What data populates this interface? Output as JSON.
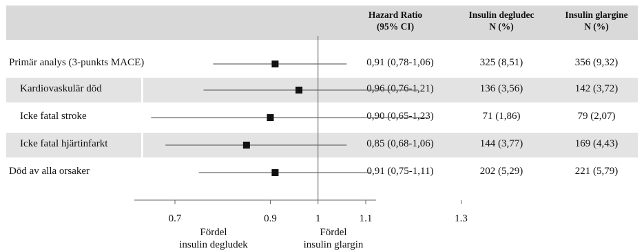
{
  "headers": {
    "hr": [
      "Hazard Ratio",
      "(95% CI)"
    ],
    "deg": [
      "Insulin degludec",
      "N (%)"
    ],
    "gla": [
      "Insulin glargine",
      "N (%)"
    ]
  },
  "favour_left": [
    "Fördel",
    "insulin degludek"
  ],
  "favour_right": [
    "Fördel",
    "insulin glargin"
  ],
  "chart_data": {
    "type": "forest",
    "reference_line": 1,
    "xlim": [
      0.5,
      1.58
    ],
    "ticks": [
      {
        "value": 0.7,
        "label": "0.7"
      },
      {
        "value": 0.9,
        "label": "0.9"
      },
      {
        "value": 1.0,
        "label": "1"
      },
      {
        "value": 1.1,
        "label": "1.1"
      },
      {
        "value": 1.3,
        "label": "1.3"
      }
    ],
    "rows": [
      {
        "label": "Primär analys (3-punkts MACE)",
        "hr": 0.91,
        "lo": 0.78,
        "hi": 1.06,
        "hr_text": "0,91 (0,78-1,06)",
        "deg": "325 (8,51)",
        "gla": "356 (9,32)",
        "shaded": false,
        "indent": false
      },
      {
        "label": "Kardiovaskulär död",
        "hr": 0.96,
        "lo": 0.76,
        "hi": 1.21,
        "hr_text": "0,96 (0,76-1,21)",
        "deg": "136 (3,56)",
        "gla": "142 (3,72)",
        "shaded": true,
        "indent": true
      },
      {
        "label": "Icke fatal stroke",
        "hr": 0.9,
        "lo": 0.65,
        "hi": 1.23,
        "hr_text": "0,90 (0,65-1,23)",
        "deg": "71 (1,86)",
        "gla": "79 (2,07)",
        "shaded": false,
        "indent": true
      },
      {
        "label": "Icke fatal hjärtinfarkt",
        "hr": 0.85,
        "lo": 0.68,
        "hi": 1.06,
        "hr_text": "0,85 (0,68-1,06)",
        "deg": "144 (3,77)",
        "gla": "169 (4,43)",
        "shaded": true,
        "indent": true
      },
      {
        "label": "Död av alla orsaker",
        "hr": 0.91,
        "lo": 0.75,
        "hi": 1.11,
        "hr_text": "0,91 (0,75-1,11)",
        "deg": "202 (5,29)",
        "gla": "221 (5,79)",
        "shaded": false,
        "indent": false
      }
    ]
  }
}
